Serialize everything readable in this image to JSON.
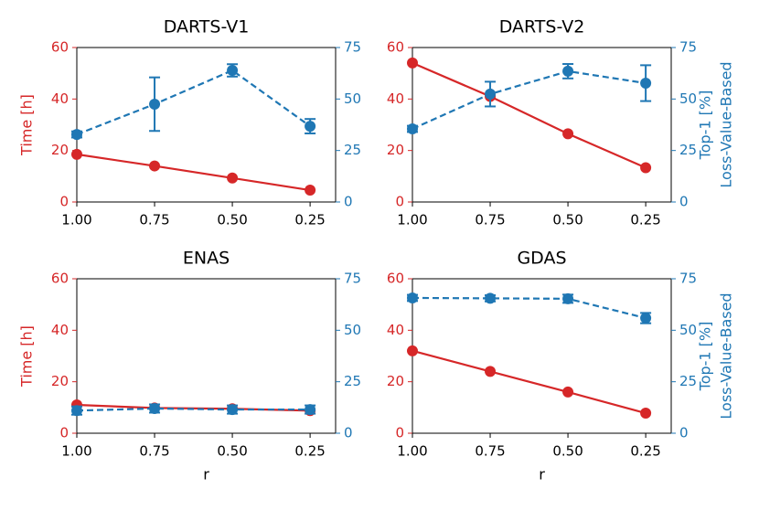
{
  "chart_data": [
    {
      "type": "line",
      "title": "DARTS-V1",
      "ylabel": "Time [h]",
      "x": [
        1,
        0.75,
        0.5,
        0.25
      ],
      "xlim": [
        1.0,
        0.168
      ],
      "xticks": [
        {
          "value": 1,
          "label": "1.00"
        },
        {
          "value": 0.75,
          "label": "0.75"
        },
        {
          "value": 0.5,
          "label": "0.50"
        },
        {
          "value": 0.25,
          "label": "0.25"
        }
      ],
      "ylim": [
        0,
        60
      ],
      "yticks": [
        0,
        20,
        40,
        60
      ],
      "y2lim": [
        0,
        75
      ],
      "y2ticks": [
        0,
        25,
        50,
        75
      ],
      "series": [
        {
          "color": "#d62728",
          "values": [
            18.5,
            14,
            9.3,
            4.6
          ],
          "dash": false
        },
        {
          "color": "#1f77b4",
          "values": [
            32.8,
            47.5,
            63.9,
            36.8
          ],
          "errors": [
            1.5,
            13,
            3,
            3.5
          ],
          "axis": "y2",
          "dash": true
        }
      ]
    },
    {
      "type": "line",
      "title": "DARTS-V2",
      "y2label": [
        "Top-1 [%]",
        "Loss-Value-Based"
      ],
      "x": [
        1,
        0.75,
        0.5,
        0.25
      ],
      "xlim": [
        1.0,
        0.168
      ],
      "xticks": [
        {
          "value": 1,
          "label": "1.00"
        },
        {
          "value": 0.75,
          "label": "0.75"
        },
        {
          "value": 0.5,
          "label": "0.50"
        },
        {
          "value": 0.25,
          "label": "0.25"
        }
      ],
      "ylim": [
        0,
        60
      ],
      "yticks": [
        0,
        20,
        40,
        60
      ],
      "y2lim": [
        0,
        75
      ],
      "y2ticks": [
        0,
        25,
        50,
        75
      ],
      "series": [
        {
          "color": "#d62728",
          "values": [
            54,
            41,
            26.5,
            13.3
          ],
          "dash": false
        },
        {
          "color": "#1f77b4",
          "values": [
            35.5,
            52.4,
            63.5,
            57.7
          ],
          "errors": [
            1.5,
            6,
            3.5,
            8.7
          ],
          "axis": "y2",
          "dash": true
        }
      ]
    },
    {
      "type": "line",
      "title": "ENAS",
      "ylabel": "Time [h]",
      "xlabel": "r",
      "x": [
        1,
        0.75,
        0.5,
        0.25
      ],
      "xlim": [
        1.0,
        0.168
      ],
      "xticks": [
        {
          "value": 1,
          "label": "1.00"
        },
        {
          "value": 0.75,
          "label": "0.75"
        },
        {
          "value": 0.5,
          "label": "0.50"
        },
        {
          "value": 0.25,
          "label": "0.25"
        }
      ],
      "ylim": [
        0,
        60
      ],
      "yticks": [
        0,
        20,
        40,
        60
      ],
      "y2lim": [
        0,
        75
      ],
      "y2ticks": [
        0,
        25,
        50,
        75
      ],
      "series": [
        {
          "color": "#d62728",
          "values": [
            11,
            9.8,
            9.5,
            8.8
          ],
          "dash": false
        },
        {
          "color": "#1f77b4",
          "values": [
            11,
            12,
            11.5,
            11.5
          ],
          "errors": [
            2,
            2,
            2,
            2
          ],
          "axis": "y2",
          "dash": true
        }
      ]
    },
    {
      "type": "line",
      "title": "GDAS",
      "y2label": [
        "Top-1 [%]",
        "Loss-Value-Based"
      ],
      "xlabel": "r",
      "x": [
        1,
        0.75,
        0.5,
        0.25
      ],
      "xlim": [
        1.0,
        0.168
      ],
      "xticks": [
        {
          "value": 1,
          "label": "1.00"
        },
        {
          "value": 0.75,
          "label": "0.75"
        },
        {
          "value": 0.5,
          "label": "0.50"
        },
        {
          "value": 0.25,
          "label": "0.25"
        }
      ],
      "ylim": [
        0,
        60
      ],
      "yticks": [
        0,
        20,
        40,
        60
      ],
      "y2lim": [
        0,
        75
      ],
      "y2ticks": [
        0,
        25,
        50,
        75
      ],
      "series": [
        {
          "color": "#d62728",
          "values": [
            32,
            24,
            16,
            7.8
          ],
          "dash": false
        },
        {
          "color": "#1f77b4",
          "values": [
            65.7,
            65.5,
            65.3,
            55.9
          ],
          "errors": [
            1.5,
            1.5,
            2,
            2.5
          ],
          "axis": "y2",
          "dash": true
        }
      ]
    }
  ]
}
